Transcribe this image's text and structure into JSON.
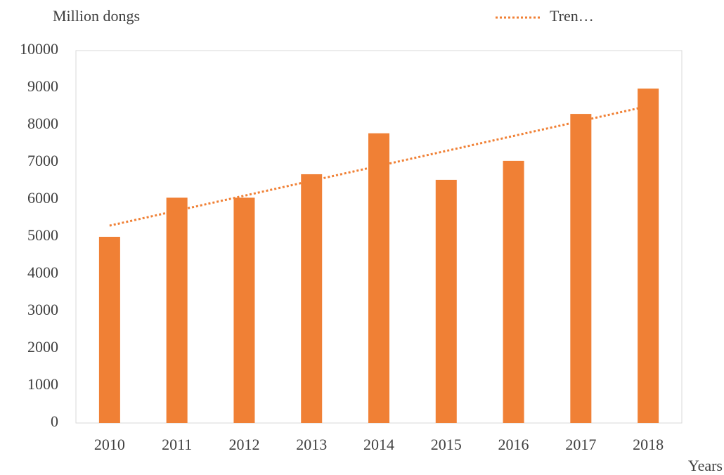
{
  "chart_data": {
    "type": "bar",
    "y_axis_label": "Million dongs",
    "x_axis_label": "Years",
    "categories": [
      "2010",
      "2011",
      "2012",
      "2013",
      "2014",
      "2015",
      "2016",
      "2017",
      "2018"
    ],
    "series": [
      {
        "name": null,
        "type": "bar",
        "color": "#f08035",
        "values": [
          5000,
          6050,
          6050,
          6680,
          7780,
          6530,
          7040,
          8300,
          8980
        ]
      },
      {
        "name": "Tren…",
        "type": "line",
        "style": "dotted",
        "color": "#f08035",
        "values": [
          5300,
          5701,
          6103,
          6504,
          6905,
          7306,
          7708,
          8109,
          8510
        ]
      }
    ],
    "ylim": [
      0,
      10000
    ],
    "yticks": [
      0,
      1000,
      2000,
      3000,
      4000,
      5000,
      6000,
      7000,
      8000,
      9000,
      10000
    ],
    "grid": false,
    "legend": "top-right"
  }
}
